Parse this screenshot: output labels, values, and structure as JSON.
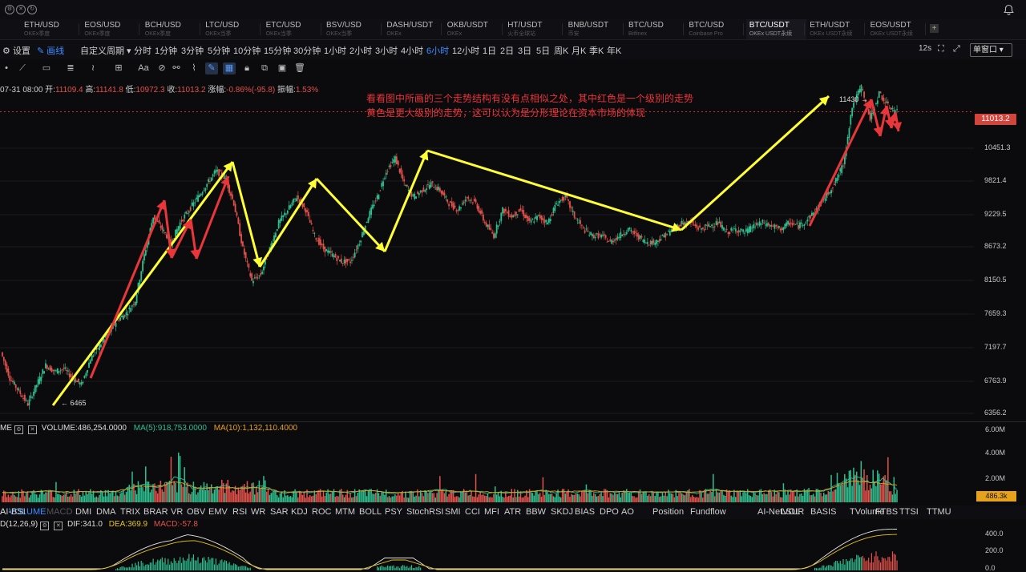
{
  "topbar": {
    "icons": [
      "settings-circle-icon",
      "close-circle-icon",
      "refresh-circle-icon",
      "bell-icon"
    ]
  },
  "tabs": [
    {
      "name": "ETH/USD",
      "sub": "OKEx季度"
    },
    {
      "name": "EOS/USD",
      "sub": "OKEx季度"
    },
    {
      "name": "BCH/USD",
      "sub": "OKEx季度"
    },
    {
      "name": "LTC/USD",
      "sub": "OKEx当季"
    },
    {
      "name": "ETC/USD",
      "sub": "OKEx当季"
    },
    {
      "name": "BSV/USD",
      "sub": "OKEx当季"
    },
    {
      "name": "DASH/USDT",
      "sub": "OKEx"
    },
    {
      "name": "OKB/USDT",
      "sub": "OKEx"
    },
    {
      "name": "HT/USDT",
      "sub": "火币全球站"
    },
    {
      "name": "BNB/USDT",
      "sub": "币安"
    },
    {
      "name": "BTC/USD",
      "sub": "Bitfinex"
    },
    {
      "name": "BTC/USD",
      "sub": "Coinbase Pro"
    },
    {
      "name": "BTC/USDT",
      "sub": "OKEx USDT永续"
    },
    {
      "name": "ETH/USDT",
      "sub": "OKEx USDT永续"
    },
    {
      "name": "EOS/USDT",
      "sub": "OKEx USDT永续"
    }
  ],
  "toolbar": {
    "settings": "设置",
    "draw": "画线",
    "custom_period": "自定义周期",
    "periods": [
      "分时",
      "1分钟",
      "3分钟",
      "5分钟",
      "10分钟",
      "15分钟",
      "30分钟",
      "1小时",
      "2小时",
      "3小时",
      "4小时",
      "6小时",
      "12小时",
      "1日",
      "2日",
      "3日",
      "5日",
      "周K",
      "月K",
      "季K",
      "年K"
    ],
    "active_period": "6小时",
    "interval": "12s",
    "view_mode": "单窗口"
  },
  "info": {
    "date": "07-31 08:00",
    "open_label": "开:",
    "open": "11109.4",
    "high_label": "高:",
    "high": "11141.8",
    "low_label": "低:",
    "low": "10972.3",
    "close_label": "收:",
    "close": "11013.2",
    "chg_label": "涨幅:",
    "chg": "-0.86%(-95.8)",
    "amp_label": "振幅:",
    "amp": "1.53%"
  },
  "note": {
    "line1": "看看图中所画的三个走势结构有没有点相似之处，其中红色是一个级别的走势",
    "line2": "黄色是更大级别的走势，这可以认为是分形理论在资本市场的体现"
  },
  "chart_data": {
    "type": "line",
    "y_ticks": [
      "10451.3",
      "9821.4",
      "9229.5",
      "8673.2",
      "8150.5",
      "7659.3",
      "7197.7",
      "6763.9",
      "6356.2"
    ],
    "current_price": "11013.2",
    "annotations": {
      "low": "6465",
      "high": "11430"
    },
    "close_path": [
      7300,
      6900,
      6700,
      6500,
      6800,
      7100,
      7000,
      7050,
      6900,
      6800,
      7200,
      7400,
      7600,
      7800,
      7900,
      8100,
      8800,
      9400,
      9200,
      9000,
      9300,
      9500,
      9700,
      9900,
      10100,
      10000,
      9600,
      8900,
      8400,
      8500,
      8900,
      9300,
      9500,
      9700,
      9500,
      9100,
      8900,
      8800,
      8700,
      8700,
      9000,
      9400,
      9700,
      10100,
      10300,
      9900,
      9700,
      9800,
      9900,
      9800,
      9600,
      9500,
      9700,
      9600,
      9300,
      9100,
      9500,
      9400,
      9500,
      9300,
      9400,
      9300,
      9600,
      9700,
      9400,
      9200,
      9100,
      9100,
      9000,
      9100,
      9200,
      9100,
      9000,
      9000,
      9100,
      9200,
      9300,
      9300,
      9200,
      9250,
      9300,
      9150,
      9200,
      9150,
      9250,
      9300,
      9250,
      9200,
      9300,
      9250,
      9350,
      9500,
      9700,
      9900,
      10200,
      11100,
      11400,
      10900,
      11300,
      11100,
      11013
    ]
  },
  "volume": {
    "title": "VOLUME",
    "value": "VOLUME:486,254.0000",
    "ma5": "MA(5):918,753.0000",
    "ma10": "MA(10):1,132,110.4000",
    "axis": [
      "6.00M",
      "4.00M",
      "2.00M"
    ],
    "current": "486.3k"
  },
  "indicator_tabs": [
    "VOLUME",
    "MACD",
    "DMI",
    "DMA",
    "TRIX",
    "BRAR",
    "VR",
    "OBV",
    "EMV",
    "RSI",
    "WR",
    "SAR",
    "KDJ",
    "ROC",
    "MTM",
    "BOLL",
    "PSY",
    "StochRSI",
    "SMI",
    "CCI",
    "MFI",
    "ATR",
    "BBW",
    "SKDJ",
    "BIAS",
    "DPO",
    "AO",
    "Position",
    "Fundflow",
    "AI-NetVOL",
    "LSUR",
    "BASIS",
    "TVolume",
    "FTBS",
    "TTSI",
    "TTMU",
    "AI-BSI"
  ],
  "macd": {
    "title": "D(12,26,9)",
    "dif": "DIF:341.0",
    "dea": "DEA:369.9",
    "macd": "MACD:-57.8",
    "axis": [
      "400.0",
      "200.0",
      "0.0"
    ]
  },
  "colors": {
    "up": "#2fbf8f",
    "down": "#e2514a",
    "yellow": "#ffff33",
    "red_line": "#e8363a",
    "accent": "#3d8bff"
  }
}
